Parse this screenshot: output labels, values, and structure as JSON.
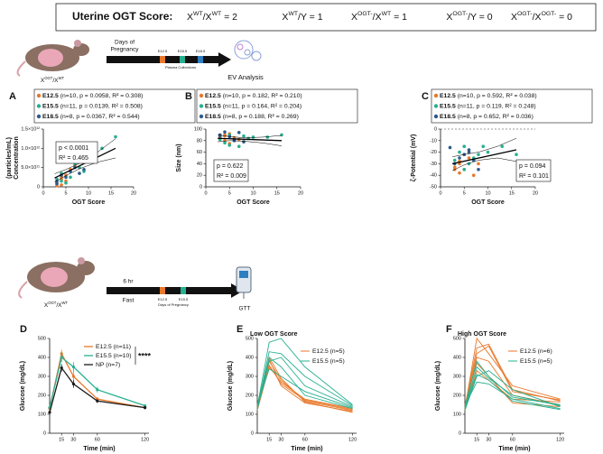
{
  "header": {
    "title": "Uterine OGT Score:",
    "equations": [
      [
        "X",
        "WT",
        "/X",
        "WT",
        " = 2"
      ],
      [
        "X",
        "WT",
        "/Y = 1"
      ],
      [
        "X",
        "OGT-",
        "/X",
        "WT",
        " = 1"
      ],
      [
        "X",
        "OGT-",
        "/Y = 0"
      ],
      [
        "X",
        "OGT-",
        "/X",
        "OGT-",
        " = 0"
      ]
    ]
  },
  "schematics": {
    "ev": {
      "genotype": [
        "X",
        "OGT",
        "/X",
        "WT"
      ],
      "timeline_label": [
        "Days of",
        "Pregnancy"
      ],
      "days": [
        "E12.5",
        "E15.5",
        "E18.5"
      ],
      "collection": "Plasma Collections",
      "outcome": "EV Analysis"
    },
    "gtt": {
      "genotype": [
        "X",
        "OGT",
        "/X",
        "WT"
      ],
      "fast_time": "6 hr",
      "fast": "Fast",
      "days": [
        "E12.5",
        "E15.5"
      ],
      "timeline_label": "Days of Pregnancy",
      "outcome": "GTT"
    }
  },
  "chart_data": [
    {
      "type": "scatter",
      "panel": "A",
      "ylabel": [
        "Concentration",
        "(particles/mL)"
      ],
      "xlabel": "OGT Score",
      "xlim": [
        0,
        20
      ],
      "xticks": [
        0,
        5,
        10,
        15,
        20
      ],
      "ylim": [
        0,
        1500000000000.0
      ],
      "yticks": [
        0,
        {
          "value": 500000000000.0,
          "label": "5.0×10¹¹"
        },
        {
          "value": 1000000000000.0,
          "label": "1.0×10¹²"
        },
        {
          "value": 1500000000000.0,
          "label": "1.5×10¹²"
        }
      ],
      "annotation": [
        "p < 0.0001",
        "R² = 0.465"
      ],
      "fit": {
        "x": [
          2.5,
          16
        ],
        "values": [
          230000000000.0,
          1000000000000.0
        ]
      },
      "ci_x": [
        2.5,
        5,
        8,
        12,
        16
      ],
      "ci_upper": [
        340000000000.0,
        450000000000.0,
        610000000000.0,
        900000000000.0,
        1250000000000.0
      ],
      "ci_lower": [
        120000000000.0,
        290000000000.0,
        470000000000.0,
        640000000000.0,
        750000000000.0
      ],
      "series": [
        {
          "name": "E12.5",
          "stats": "(n=10, p = 0.0958, R² = 0.308)",
          "color": "#e8782a",
          "x": [
            3,
            4,
            4,
            5,
            5,
            6,
            7,
            8,
            4,
            3
          ],
          "values": [
            100000000000.0,
            50000000000.0,
            200000000000.0,
            300000000000.0,
            150000000000.0,
            450000000000.0,
            550000000000.0,
            650000000000.0,
            250000000000.0,
            30000000000.0
          ]
        },
        {
          "name": "E15.5",
          "stats": "(n=11, p = 0.0139, R² = 0.508)",
          "color": "#27b08f",
          "x": [
            3,
            4,
            5,
            6,
            7,
            8,
            9,
            10,
            13,
            16,
            4
          ],
          "values": [
            200000000000.0,
            350000000000.0,
            100000000000.0,
            250000000000.0,
            600000000000.0,
            500000000000.0,
            400000000000.0,
            700000000000.0,
            1000000000000.0,
            1300000000000.0,
            150000000000.0
          ]
        },
        {
          "name": "E18.5",
          "stats": "(n=8, p = 0.0367, R² = 0.544)",
          "color": "#2d5b8c",
          "x": [
            3,
            4,
            5,
            6,
            7,
            8,
            9,
            3
          ],
          "values": [
            150000000000.0,
            300000000000.0,
            250000000000.0,
            400000000000.0,
            500000000000.0,
            350000000000.0,
            450000000000.0,
            80000000000.0
          ]
        }
      ]
    },
    {
      "type": "scatter",
      "panel": "B",
      "ylabel": "Size (nm)",
      "xlabel": "OGT Score",
      "xlim": [
        0,
        20
      ],
      "xticks": [
        0,
        5,
        10,
        15,
        20
      ],
      "ylim": [
        0,
        100
      ],
      "yticks": [
        0,
        20,
        40,
        60,
        80,
        100
      ],
      "annotation": [
        "p = 0.622",
        "R² = 0.009"
      ],
      "fit": {
        "x": [
          2.5,
          16
        ],
        "values": [
          84,
          80
        ]
      },
      "ci_x": [
        2.5,
        5,
        8,
        12,
        16
      ],
      "ci_upper": [
        90,
        87,
        85,
        86,
        89
      ],
      "ci_lower": [
        78,
        80,
        79,
        76,
        71
      ],
      "series": [
        {
          "name": "E12.5",
          "stats": "(n=10, p = 0.182, R² = 0.210)",
          "color": "#e8782a",
          "x": [
            3,
            4,
            4,
            5,
            6,
            7,
            8,
            4,
            5,
            3
          ],
          "values": [
            85,
            80,
            90,
            75,
            85,
            82,
            78,
            88,
            92,
            86
          ]
        },
        {
          "name": "E15.5",
          "stats": "(n=11, p = 0.164, R² = 0.204)",
          "color": "#27b08f",
          "x": [
            3,
            4,
            5,
            6,
            7,
            8,
            9,
            10,
            13,
            16,
            5
          ],
          "values": [
            82,
            76,
            72,
            80,
            70,
            88,
            84,
            86,
            86,
            90,
            90
          ]
        },
        {
          "name": "E18.5",
          "stats": "(n=8, p = 0.188, R² = 0.269)",
          "color": "#2d5b8c",
          "x": [
            3,
            4,
            5,
            6,
            7,
            8,
            3,
            6
          ],
          "values": [
            90,
            95,
            87,
            80,
            94,
            78,
            88,
            82
          ]
        }
      ]
    },
    {
      "type": "scatter",
      "panel": "C",
      "ylabel": "ζ-Potential (mV)",
      "xlabel": "OGT Score",
      "xlim": [
        0,
        20
      ],
      "xticks": [
        0,
        5,
        10,
        15,
        20
      ],
      "ylim": [
        -50,
        0
      ],
      "yticks": [
        0,
        -10,
        -20,
        -30,
        -40,
        -50
      ],
      "hline": 0,
      "annotation": [
        "p = 0.094",
        "R² = 0.101"
      ],
      "fit": {
        "x": [
          2.5,
          16
        ],
        "values": [
          -30,
          -18
        ]
      },
      "ci_x": [
        2.5,
        5,
        8,
        12,
        16
      ],
      "ci_upper": [
        -24,
        -22,
        -20,
        -15,
        -8
      ],
      "ci_lower": [
        -36,
        -31,
        -27,
        -25,
        -28
      ],
      "series": [
        {
          "name": "E12.5",
          "stats": "(n=10, p = 0.592, R² = 0.038)",
          "color": "#e8782a",
          "x": [
            3,
            4,
            4,
            5,
            6,
            7,
            8,
            4,
            5,
            3
          ],
          "values": [
            -33,
            -38,
            -30,
            -35,
            -25,
            -40,
            -30,
            -28,
            -22,
            -35
          ]
        },
        {
          "name": "E15.5",
          "stats": "(n=11, p = 0.119, R² = 0.248)",
          "color": "#27b08f",
          "x": [
            3,
            4,
            5,
            6,
            7,
            8,
            9,
            10,
            13,
            16,
            5
          ],
          "values": [
            -27,
            -20,
            -15,
            -30,
            -25,
            -22,
            -15,
            -20,
            -15,
            -22,
            -35
          ]
        },
        {
          "name": "E18.5",
          "stats": "(n=8, p = 0.652, R² = 0.036)",
          "color": "#2d5b8c",
          "x": [
            3,
            4,
            5,
            6,
            7,
            8,
            2,
            6
          ],
          "values": [
            -30,
            -25,
            -22,
            -18,
            -27,
            -35,
            -16,
            -20
          ]
        }
      ]
    },
    {
      "type": "line",
      "panel": "D",
      "ylabel": "Glucose (mg/dL)",
      "xlabel": "Time (min)",
      "x": [
        0,
        15,
        30,
        60,
        120
      ],
      "xlim": [
        0,
        125
      ],
      "xticks": [
        15,
        30,
        60,
        120
      ],
      "ylim": [
        0,
        500
      ],
      "yticks": [
        0,
        100,
        200,
        300,
        400,
        500
      ],
      "significance": "****",
      "series": [
        {
          "name": "E12.5 (n=11)",
          "color": "#e8782a",
          "values": [
            130,
            420,
            300,
            180,
            135
          ],
          "errors": [
            10,
            20,
            25,
            12,
            8
          ]
        },
        {
          "name": "E15.5 (n=10)",
          "color": "#27b08f",
          "values": [
            135,
            400,
            350,
            230,
            145
          ],
          "errors": [
            10,
            25,
            25,
            15,
            8
          ]
        },
        {
          "name": "NP (n=7)",
          "color": "#1a1a1a",
          "values": [
            110,
            345,
            260,
            170,
            135
          ],
          "errors": [
            8,
            20,
            20,
            10,
            8
          ]
        }
      ]
    },
    {
      "type": "spaghetti",
      "panel": "E",
      "title": "Low OGT Score",
      "ylabel": "Glucose (mg/dL)",
      "xlabel": "Time (min)",
      "x": [
        0,
        15,
        30,
        60,
        120
      ],
      "xlim": [
        0,
        125
      ],
      "xticks": [
        15,
        30,
        60,
        120
      ],
      "ylim": [
        0,
        500
      ],
      "yticks": [
        0,
        100,
        200,
        300,
        400,
        500
      ],
      "series": [
        {
          "name": "E12.5 (n=5)",
          "color": "#e8782a",
          "lines": [
            [
              130,
              380,
              280,
              170,
              120
            ],
            [
              140,
              360,
              260,
              175,
              125
            ],
            [
              120,
              350,
              270,
              180,
              130
            ],
            [
              150,
              390,
              250,
              160,
              115
            ],
            [
              135,
              400,
              290,
              165,
              110
            ]
          ]
        },
        {
          "name": "E15.5 (n=5)",
          "color": "#27b08f",
          "lines": [
            [
              140,
              480,
              500,
              350,
              150
            ],
            [
              130,
              430,
              420,
              300,
              145
            ],
            [
              125,
              380,
              400,
              250,
              140
            ],
            [
              145,
              340,
              300,
              220,
              135
            ],
            [
              130,
              400,
              350,
              200,
              130
            ]
          ]
        }
      ]
    },
    {
      "type": "spaghetti",
      "panel": "F",
      "title": "High OGT Score",
      "ylabel": "Glucose (mg/dL)",
      "xlabel": "Time (min)",
      "x": [
        0,
        15,
        30,
        60,
        120
      ],
      "xlim": [
        0,
        125
      ],
      "xticks": [
        15,
        30,
        60,
        120
      ],
      "ylim": [
        0,
        500
      ],
      "yticks": [
        0,
        100,
        200,
        300,
        400,
        500
      ],
      "series": [
        {
          "name": "E12.5 (n=6)",
          "color": "#e8782a",
          "lines": [
            [
              130,
              500,
              420,
              250,
              180
            ],
            [
              140,
              450,
              470,
              230,
              170
            ],
            [
              120,
              400,
              380,
              200,
              150
            ],
            [
              150,
              370,
              300,
              160,
              140
            ],
            [
              135,
              420,
              460,
              220,
              175
            ],
            [
              125,
              330,
              280,
              180,
              165
            ]
          ]
        },
        {
          "name": "E15.5 (n=5)",
          "color": "#27b08f",
          "lines": [
            [
              140,
              380,
              300,
              190,
              150
            ],
            [
              130,
              350,
              290,
              200,
              145
            ],
            [
              120,
              300,
              330,
              230,
              140
            ],
            [
              145,
              270,
              260,
              180,
              130
            ],
            [
              135,
              310,
              280,
              170,
              125
            ]
          ]
        }
      ]
    }
  ]
}
